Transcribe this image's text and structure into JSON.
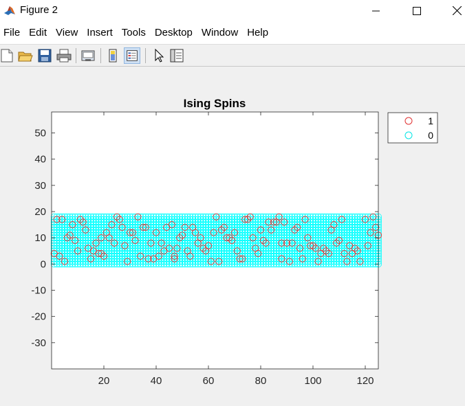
{
  "window": {
    "title": "Figure 2",
    "icon": "matlab-logo-icon"
  },
  "menu": [
    "File",
    "Edit",
    "View",
    "Insert",
    "Tools",
    "Desktop",
    "Window",
    "Help"
  ],
  "toolbar": {
    "icons": [
      "new-figure-icon",
      "open-file-icon",
      "save-icon",
      "print-icon",
      "link-plot-icon",
      "insert-colorbar-icon",
      "insert-legend-icon",
      "edit-plot-icon",
      "property-editor-icon"
    ]
  },
  "colors": {
    "spin_up": "#e03030",
    "spin_down": "#00ffff",
    "axes_bg": "#ffffff"
  },
  "chart_data": {
    "type": "scatter",
    "title": "Ising Spins",
    "xlim": [
      0,
      125
    ],
    "ylim": [
      -40,
      58
    ],
    "xticks": [
      20,
      40,
      60,
      80,
      100,
      120
    ],
    "yticks": [
      50,
      40,
      30,
      20,
      10,
      0,
      -10,
      -20,
      -30
    ],
    "grid": false,
    "legend": {
      "placement": "outside-top-right",
      "entries": [
        "1",
        "0"
      ]
    },
    "lattice": {
      "x": [
        1,
        125
      ],
      "y": [
        0,
        18
      ]
    },
    "series": [
      {
        "name": "1",
        "marker": "circle",
        "points": [
          [
            2,
            17
          ],
          [
            4,
            17
          ],
          [
            6,
            10
          ],
          [
            7,
            11
          ],
          [
            8,
            15
          ],
          [
            9,
            9
          ],
          [
            10,
            5
          ],
          [
            11,
            17
          ],
          [
            12,
            16
          ],
          [
            13,
            13
          ],
          [
            14,
            6
          ],
          [
            15,
            2
          ],
          [
            16,
            5
          ],
          [
            17,
            8
          ],
          [
            18,
            4
          ],
          [
            19,
            10
          ],
          [
            20,
            3
          ],
          [
            21,
            12
          ],
          [
            22,
            10
          ],
          [
            23,
            15
          ],
          [
            24,
            8
          ],
          [
            25,
            18
          ],
          [
            26,
            17
          ],
          [
            27,
            14
          ],
          [
            28,
            7
          ],
          [
            29,
            1
          ],
          [
            30,
            12
          ],
          [
            31,
            12
          ],
          [
            32,
            9
          ],
          [
            33,
            18
          ],
          [
            34,
            3
          ],
          [
            35,
            14
          ],
          [
            36,
            14
          ],
          [
            37,
            2
          ],
          [
            38,
            8
          ],
          [
            39,
            2
          ],
          [
            40,
            12
          ],
          [
            41,
            3
          ],
          [
            42,
            8
          ],
          [
            43,
            5
          ],
          [
            44,
            14
          ],
          [
            45,
            6
          ],
          [
            46,
            15
          ],
          [
            47,
            3
          ],
          [
            48,
            6
          ],
          [
            49,
            10
          ],
          [
            50,
            11
          ],
          [
            51,
            14
          ],
          [
            52,
            5
          ],
          [
            53,
            3
          ],
          [
            54,
            14
          ],
          [
            55,
            12
          ],
          [
            56,
            8
          ],
          [
            57,
            10
          ],
          [
            58,
            6
          ],
          [
            59,
            5
          ],
          [
            60,
            7
          ],
          [
            61,
            1
          ],
          [
            62,
            12
          ],
          [
            63,
            18
          ],
          [
            64,
            1
          ],
          [
            65,
            13
          ],
          [
            66,
            14
          ],
          [
            67,
            10
          ],
          [
            68,
            10
          ],
          [
            69,
            9
          ],
          [
            70,
            12
          ],
          [
            71,
            5
          ],
          [
            72,
            2
          ],
          [
            73,
            2
          ],
          [
            74,
            17
          ],
          [
            75,
            17
          ],
          [
            76,
            18
          ],
          [
            77,
            10
          ],
          [
            78,
            6
          ],
          [
            79,
            4
          ],
          [
            80,
            13
          ],
          [
            81,
            9
          ],
          [
            82,
            8
          ],
          [
            83,
            16
          ],
          [
            84,
            13
          ],
          [
            85,
            16
          ],
          [
            86,
            16
          ],
          [
            87,
            18
          ],
          [
            88,
            8
          ],
          [
            89,
            16
          ],
          [
            90,
            8
          ],
          [
            91,
            1
          ],
          [
            92,
            8
          ],
          [
            93,
            13
          ],
          [
            94,
            14
          ],
          [
            95,
            6
          ],
          [
            96,
            2
          ],
          [
            97,
            17
          ],
          [
            98,
            10
          ],
          [
            99,
            7
          ],
          [
            100,
            7
          ],
          [
            101,
            6
          ],
          [
            102,
            1
          ],
          [
            103,
            4
          ],
          [
            104,
            6
          ],
          [
            105,
            5
          ],
          [
            106,
            4
          ],
          [
            107,
            13
          ],
          [
            108,
            15
          ],
          [
            109,
            8
          ],
          [
            110,
            9
          ],
          [
            111,
            17
          ],
          [
            112,
            4
          ],
          [
            113,
            1
          ],
          [
            114,
            7
          ],
          [
            115,
            4
          ],
          [
            116,
            6
          ],
          [
            118,
            1
          ],
          [
            120,
            17
          ],
          [
            122,
            12
          ],
          [
            123,
            18
          ],
          [
            124,
            14
          ],
          [
            125,
            11
          ],
          [
            1,
            4
          ],
          [
            3,
            3
          ],
          [
            5,
            1
          ],
          [
            19,
            4
          ],
          [
            47,
            2
          ],
          [
            88,
            2
          ],
          [
            117,
            5
          ],
          [
            121,
            7
          ]
        ]
      },
      {
        "name": "0",
        "marker": "circle",
        "fill_lattice": true
      }
    ]
  }
}
